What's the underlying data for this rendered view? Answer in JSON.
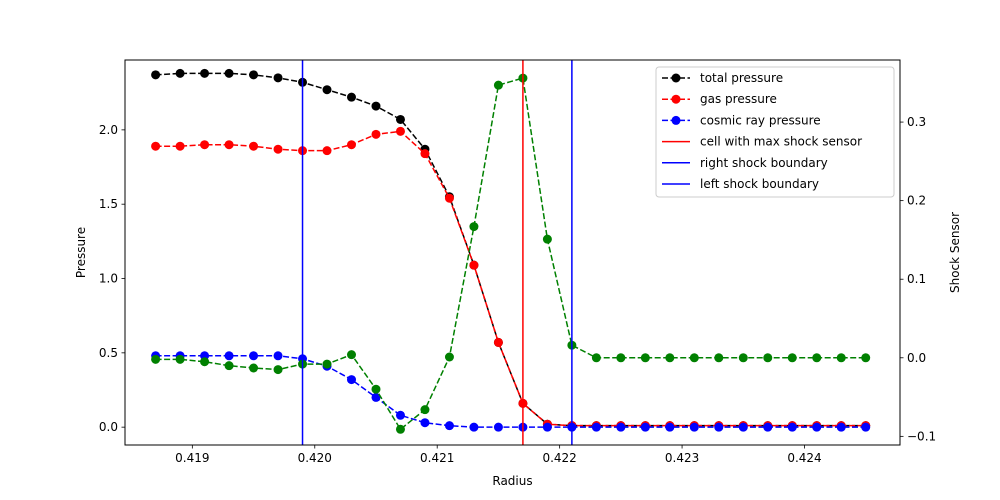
{
  "chart_data": {
    "type": "line",
    "xlabel": "Radius",
    "ylabel": "Pressure",
    "y2label": "Shock Sensor",
    "xlim": [
      0.41845,
      0.42478
    ],
    "ylim": [
      -0.12,
      2.47
    ],
    "y2lim": [
      -0.111,
      0.379
    ],
    "x_ticks": [
      0.419,
      0.42,
      0.421,
      0.422,
      0.423,
      0.424
    ],
    "x_tick_labels": [
      "0.419",
      "0.420",
      "0.421",
      "0.422",
      "0.423",
      "0.424"
    ],
    "y_ticks": [
      0.0,
      0.5,
      1.0,
      1.5,
      2.0
    ],
    "y_tick_labels": [
      "0.0",
      "0.5",
      "1.0",
      "1.5",
      "2.0"
    ],
    "y2_ticks": [
      -0.1,
      0.0,
      0.1,
      0.2,
      0.3
    ],
    "y2_tick_labels": [
      "−0.1",
      "0.0",
      "0.1",
      "0.2",
      "0.3"
    ],
    "x": [
      0.4187,
      0.4189,
      0.4191,
      0.4193,
      0.4195,
      0.4197,
      0.4199,
      0.4201,
      0.4203,
      0.4205,
      0.4207,
      0.4209,
      0.4211,
      0.4213,
      0.4215,
      0.4217,
      0.4219,
      0.4221,
      0.4223,
      0.4225,
      0.4227,
      0.4229,
      0.4231,
      0.4233,
      0.4235,
      0.4237,
      0.4239,
      0.4241,
      0.4243,
      0.4245
    ],
    "series": [
      {
        "name": "total pressure",
        "axis": "left",
        "color": "#000000",
        "values": [
          2.37,
          2.38,
          2.38,
          2.38,
          2.37,
          2.35,
          2.32,
          2.27,
          2.22,
          2.16,
          2.07,
          1.87,
          1.55,
          1.09,
          0.57,
          0.16,
          0.02,
          0.01,
          0.01,
          0.01,
          0.01,
          0.01,
          0.01,
          0.01,
          0.01,
          0.01,
          0.01,
          0.01,
          0.01,
          0.01
        ]
      },
      {
        "name": "gas pressure",
        "axis": "left",
        "color": "#ff0000",
        "values": [
          1.89,
          1.89,
          1.9,
          1.9,
          1.89,
          1.87,
          1.86,
          1.86,
          1.9,
          1.97,
          1.99,
          1.84,
          1.54,
          1.09,
          0.57,
          0.16,
          0.02,
          0.01,
          0.01,
          0.01,
          0.01,
          0.01,
          0.01,
          0.01,
          0.01,
          0.01,
          0.01,
          0.01,
          0.01,
          0.01
        ]
      },
      {
        "name": "cosmic ray pressure",
        "axis": "left",
        "color": "#0000ff",
        "values": [
          0.48,
          0.48,
          0.48,
          0.48,
          0.48,
          0.48,
          0.46,
          0.41,
          0.32,
          0.2,
          0.08,
          0.03,
          0.01,
          0.0,
          0.0,
          0.0,
          0.0,
          0.0,
          0.0,
          0.0,
          0.0,
          0.0,
          0.0,
          0.0,
          0.0,
          0.0,
          0.0,
          0.0,
          0.0,
          0.0
        ]
      },
      {
        "name": "",
        "axis": "right",
        "color": "#008000",
        "values": [
          -0.002,
          -0.002,
          -0.005,
          -0.01,
          -0.013,
          -0.015,
          -0.008,
          -0.008,
          0.004,
          -0.04,
          -0.091,
          -0.066,
          0.001,
          0.167,
          0.347,
          0.356,
          0.151,
          0.016,
          0.0,
          0.0,
          0.0,
          0.0,
          0.0,
          0.0,
          0.0,
          0.0,
          0.0,
          0.0,
          0.0,
          0.0
        ]
      }
    ],
    "vlines": [
      {
        "name": "cell with max shock sensor",
        "x": 0.4217,
        "color": "#ff0000"
      },
      {
        "name": "right shock boundary",
        "x": 0.4199,
        "color": "#0000ff"
      },
      {
        "name": "left shock boundary",
        "x": 0.4221,
        "color": "#0000ff"
      }
    ],
    "legend": {
      "placement": "top-right",
      "entries": [
        {
          "label": "total pressure",
          "color": "#000000",
          "style": "dashed-marker"
        },
        {
          "label": "gas pressure",
          "color": "#ff0000",
          "style": "dashed-marker"
        },
        {
          "label": "cosmic ray pressure",
          "color": "#0000ff",
          "style": "dashed-marker"
        },
        {
          "label": "cell with max shock sensor",
          "color": "#ff0000",
          "style": "solid"
        },
        {
          "label": "right shock boundary",
          "color": "#0000ff",
          "style": "solid"
        },
        {
          "label": "left shock boundary",
          "color": "#0000ff",
          "style": "solid"
        }
      ]
    },
    "grid": false
  }
}
